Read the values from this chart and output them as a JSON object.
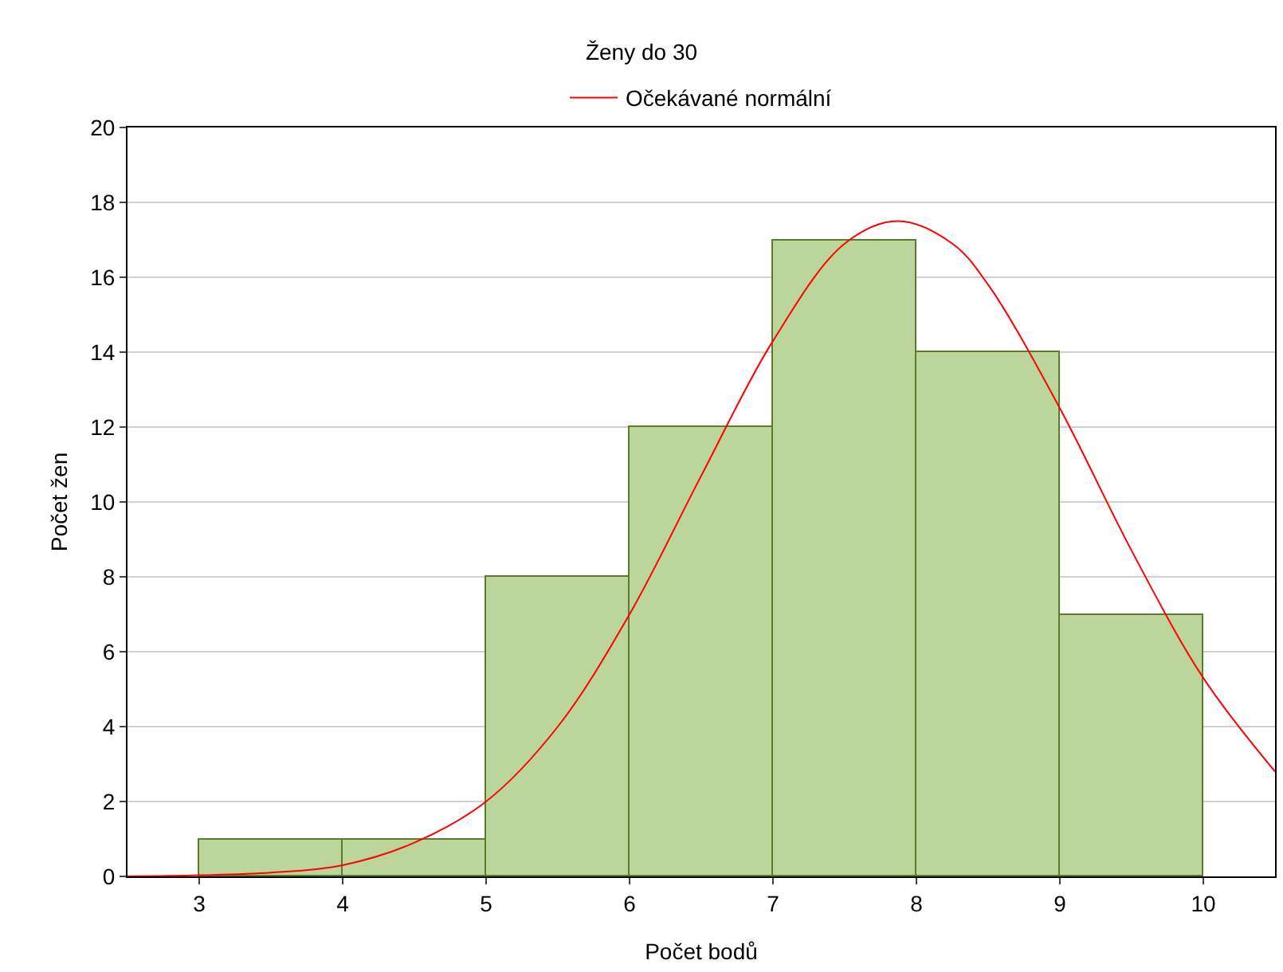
{
  "chart_data": {
    "type": "histogram",
    "title": "Ženy do 30",
    "xlabel": "Počet bodů",
    "ylabel": "Počet žen",
    "bins": [
      3,
      4,
      5,
      6,
      7,
      8,
      9,
      10
    ],
    "values": [
      1,
      1,
      8,
      12,
      17,
      14,
      7
    ],
    "color": "#bcd59a",
    "series": [
      {
        "type": "line",
        "name": "Očekávané normální",
        "color": "#ff0000",
        "x": [
          2.5,
          3,
          3.5,
          4,
          4.5,
          5,
          5.5,
          6,
          6.5,
          7,
          7.5,
          7.87,
          8.25,
          8.5,
          9,
          9.5,
          10,
          10.5
        ],
        "values": [
          0,
          0.03,
          0.1,
          0.3,
          0.9,
          2,
          4,
          7,
          10.7,
          14.3,
          16.9,
          17.5,
          16.9,
          15.8,
          12.5,
          8.7,
          5.3,
          2.8
        ]
      }
    ],
    "xlim": [
      2.5,
      10.5
    ],
    "xticks": [
      3,
      4,
      5,
      6,
      7,
      8,
      9,
      10
    ],
    "ylim": [
      0,
      20
    ],
    "yticks": [
      0,
      2,
      4,
      6,
      8,
      10,
      12,
      14,
      16,
      18,
      20
    ],
    "grid": "y",
    "legend": "top",
    "line_style": "solid",
    "marker": "none"
  }
}
